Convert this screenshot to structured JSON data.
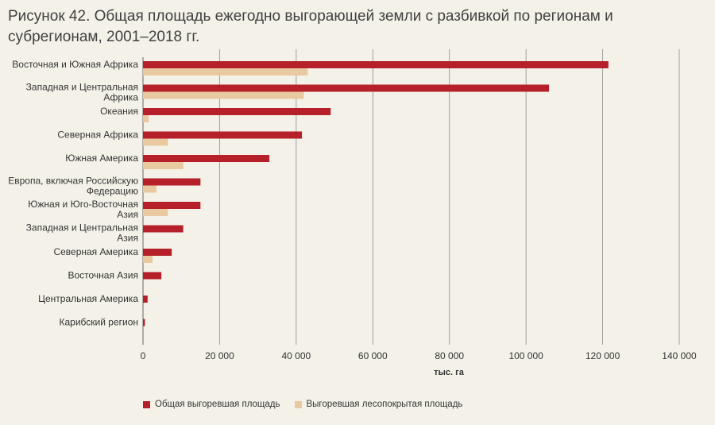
{
  "title": "Рисунок 42. Общая площадь ежегодно выгорающей земли с разбивкой по регионам и субрегионам, 2001–2018 гг.",
  "colors": {
    "total": "#b5202a",
    "forest": "#e8c9a0",
    "grid": "#8a8a8a",
    "background": "#f4f2e8"
  },
  "chart_data": {
    "type": "bar",
    "orientation": "horizontal",
    "title": "Рисунок 42. Общая площадь ежегодно выгорающей земли с разбивкой по регионам и субрегионам, 2001–2018 гг.",
    "xlabel": "тыс. га",
    "ylabel": "",
    "xlim": [
      0,
      140000
    ],
    "xticks": [
      0,
      20000,
      40000,
      60000,
      80000,
      100000,
      120000,
      140000
    ],
    "xtick_labels": [
      "0",
      "20 000",
      "40 000",
      "60 000",
      "80 000",
      "100 000",
      "120 000",
      "140 000"
    ],
    "grid": "vertical",
    "legend_position": "bottom",
    "categories": [
      [
        "Восточная и Южная Африка"
      ],
      [
        "Западная и Центральная",
        "Африка"
      ],
      [
        "Океания"
      ],
      [
        "Северная Африка"
      ],
      [
        "Южная Америка"
      ],
      [
        "Европа, включая Российскую",
        "Федерацию"
      ],
      [
        "Южная и Юго-Восточная",
        "Азия"
      ],
      [
        "Западная и Центральная",
        "Азия"
      ],
      [
        "Северная Америка"
      ],
      [
        "Восточная Азия"
      ],
      [
        "Центральная Америка"
      ],
      [
        "Карибский регион"
      ]
    ],
    "series": [
      {
        "name": "Общая выгоревшая площадь",
        "color": "#b5202a",
        "values": [
          121500,
          106000,
          49000,
          41500,
          33000,
          15000,
          15000,
          10500,
          7500,
          4800,
          1200,
          500
        ]
      },
      {
        "name": "Выгоревшая лесопокрытая площадь",
        "color": "#e8c9a0",
        "values": [
          43000,
          42000,
          1500,
          6500,
          10500,
          3500,
          6500,
          0,
          2500,
          0,
          0,
          0
        ]
      }
    ]
  }
}
